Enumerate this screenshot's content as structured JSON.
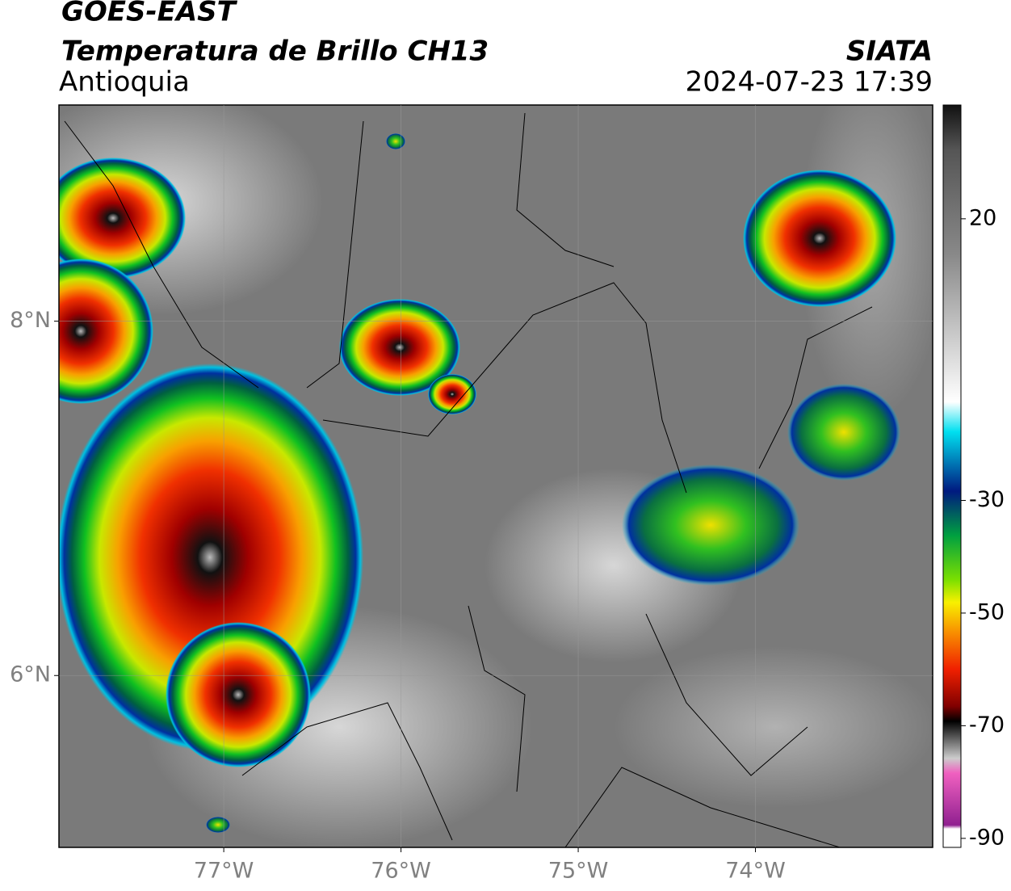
{
  "map": {
    "title": "GOES-EAST",
    "subtitle": "Temperatura de Brillo CH13",
    "region": "Antioquia",
    "source": "SIATA",
    "timestamp": "2024-07-23 17:39",
    "xlim": [
      -77.93,
      -73
    ],
    "ylim": [
      5.03,
      9.22
    ],
    "xticks": [
      {
        "value": -77,
        "label": "77°W"
      },
      {
        "value": -76,
        "label": "76°W"
      },
      {
        "value": -75,
        "label": "75°W"
      },
      {
        "value": -74,
        "label": "74°W"
      }
    ],
    "yticks": [
      {
        "value": 8,
        "label": "8°N"
      },
      {
        "value": 6,
        "label": "6°N"
      }
    ],
    "grid": true,
    "colorbar": {
      "lim": [
        -91.6,
        40.2
      ],
      "ticks": [
        20,
        -30,
        -50,
        -70,
        -90
      ]
    }
  }
}
